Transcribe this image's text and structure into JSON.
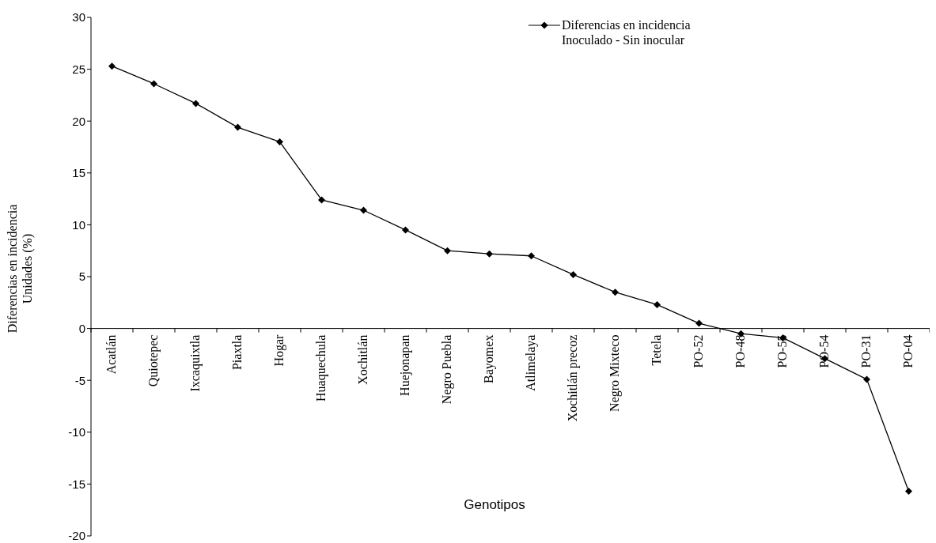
{
  "chart_data": {
    "type": "line",
    "xlabel": "Genotipos",
    "ylabel": "Diferencias en incidencia\nUnidades (%)",
    "categories": [
      "Acatlán",
      "Quiotepec",
      "Ixcaquixtla",
      "Piaxtla",
      "Hogar",
      "Huaquechula",
      "Xochitlán",
      "Huejonapan",
      "Negro Puebla",
      "Bayomex",
      "Atlimelaya",
      "Xochitlán precoz",
      "Negro Mixteco",
      "Tetela",
      "PO-52",
      "PO-48",
      "PO-55",
      "PO-54",
      "PO-31",
      "PO-04"
    ],
    "series": [
      {
        "name": "Diferencias en incidencia\nInoculado - Sin inocular",
        "color": "#000000",
        "values": [
          25.3,
          23.6,
          21.7,
          19.4,
          18.0,
          12.4,
          11.4,
          9.5,
          7.5,
          7.2,
          7.0,
          5.2,
          3.5,
          2.3,
          0.5,
          -0.5,
          -0.9,
          -2.9,
          -4.9,
          -15.7
        ]
      }
    ],
    "ylim": [
      -20,
      30
    ],
    "yticks": [
      -20,
      -15,
      -10,
      -5,
      0,
      5,
      10,
      15,
      20,
      25,
      30
    ],
    "grid": false,
    "legend": "top right",
    "marker": "diamond",
    "line_style": "solid"
  }
}
